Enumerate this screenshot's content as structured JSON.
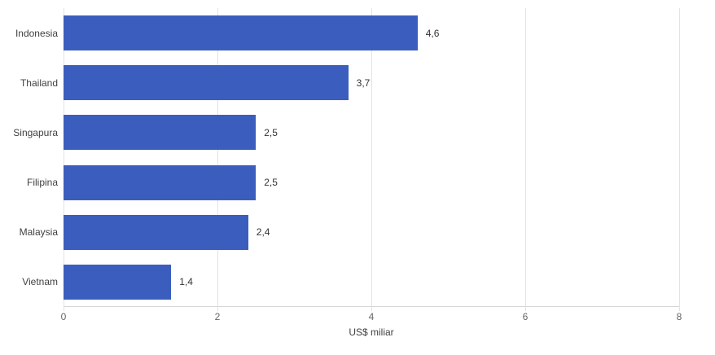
{
  "chart_data": {
    "type": "bar",
    "orientation": "horizontal",
    "title": "",
    "xlabel": "US$ miliar",
    "ylabel": "",
    "categories": [
      "Indonesia",
      "Thailand",
      "Singapura",
      "Filipina",
      "Malaysia",
      "Vietnam"
    ],
    "values": [
      4.6,
      3.7,
      2.5,
      2.5,
      2.4,
      1.4
    ],
    "value_labels": [
      "4,6",
      "3,7",
      "2,5",
      "2,5",
      "2,4",
      "1,4"
    ],
    "xlim": [
      0,
      8
    ],
    "ticks": [
      0,
      2,
      4,
      6,
      8
    ],
    "tick_labels": [
      "0",
      "2",
      "4",
      "6",
      "8"
    ],
    "grid": "vertical",
    "legend": "none",
    "bar_color": "#3B5EBE",
    "gridline_color": "#e3e3e3",
    "background_color": "#ffffff"
  }
}
